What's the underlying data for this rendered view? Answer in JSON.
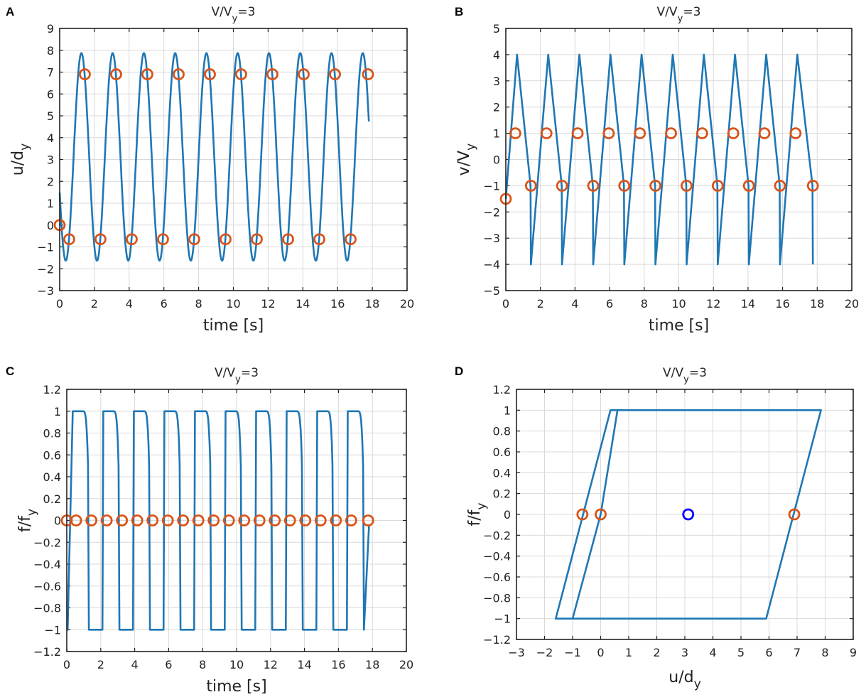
{
  "chart_data": [
    {
      "panel": "A",
      "type": "line",
      "title": "V/V",
      "title_sub": "y",
      "title_tail": "=3",
      "xlabel": "time [s]",
      "ylabel": "u/d",
      "ylabel_sub": "y",
      "xlim": [
        0,
        20
      ],
      "ylim": [
        -3,
        9
      ],
      "xticks": [
        0,
        2,
        4,
        6,
        8,
        10,
        12,
        14,
        16,
        18,
        20
      ],
      "yticks": [
        -3,
        -2,
        -1,
        0,
        1,
        2,
        3,
        4,
        5,
        6,
        7,
        8,
        9
      ],
      "curve": {
        "kind": "cosine_oscillation",
        "t_end": 17.8,
        "period": 1.8,
        "mean": 3.12,
        "amplitude": 4.75,
        "peaks": [
          1.25,
          3.05,
          4.85,
          6.65,
          8.45,
          10.25,
          12.05,
          13.85,
          15.65,
          17.45
        ],
        "troughs": [
          0.35,
          2.15,
          3.95,
          5.75,
          7.55,
          9.35,
          11.15,
          12.95,
          14.75,
          16.55
        ]
      },
      "markers": [
        {
          "x": 0.0,
          "y": 0.0
        },
        {
          "x": 0.55,
          "y": -0.65
        },
        {
          "x": 1.45,
          "y": 6.9
        },
        {
          "x": 2.35,
          "y": -0.65
        },
        {
          "x": 3.25,
          "y": 6.9
        },
        {
          "x": 4.15,
          "y": -0.65
        },
        {
          "x": 5.05,
          "y": 6.9
        },
        {
          "x": 5.95,
          "y": -0.65
        },
        {
          "x": 6.85,
          "y": 6.9
        },
        {
          "x": 7.75,
          "y": -0.65
        },
        {
          "x": 8.65,
          "y": 6.9
        },
        {
          "x": 9.55,
          "y": -0.65
        },
        {
          "x": 10.45,
          "y": 6.9
        },
        {
          "x": 11.35,
          "y": -0.65
        },
        {
          "x": 12.25,
          "y": 6.9
        },
        {
          "x": 13.15,
          "y": -0.65
        },
        {
          "x": 14.05,
          "y": 6.9
        },
        {
          "x": 14.95,
          "y": -0.65
        },
        {
          "x": 15.85,
          "y": 6.9
        },
        {
          "x": 16.75,
          "y": -0.65
        },
        {
          "x": 17.75,
          "y": 6.9
        }
      ]
    },
    {
      "panel": "B",
      "type": "line",
      "title": "V/V",
      "title_sub": "y",
      "title_tail": "=3",
      "xlabel": "time [s]",
      "ylabel": "v/V",
      "ylabel_sub": "y",
      "xlim": [
        0,
        20
      ],
      "ylim": [
        -5,
        5
      ],
      "xticks": [
        0,
        2,
        4,
        6,
        8,
        10,
        12,
        14,
        16,
        18,
        20
      ],
      "yticks": [
        -5,
        -4,
        -3,
        -2,
        -1,
        0,
        1,
        2,
        3,
        4,
        5
      ],
      "curve": {
        "kind": "sawtooth",
        "start": [
          0.0,
          -1.5
        ],
        "peaks": [
          0.65,
          2.45,
          4.25,
          6.05,
          7.85,
          9.65,
          11.45,
          13.25,
          15.05,
          16.85
        ],
        "troughs": [
          1.45,
          3.25,
          5.05,
          6.85,
          8.65,
          10.45,
          12.25,
          14.05,
          15.85,
          17.75
        ],
        "peak_value": 4,
        "trough_value": -4,
        "fall_end_value": -1
      },
      "markers": [
        {
          "x": 0.0,
          "y": -1.5
        },
        {
          "x": 0.55,
          "y": 1.0
        },
        {
          "x": 1.45,
          "y": -1.0
        },
        {
          "x": 2.35,
          "y": 1.0
        },
        {
          "x": 3.25,
          "y": -1.0
        },
        {
          "x": 4.15,
          "y": 1.0
        },
        {
          "x": 5.05,
          "y": -1.0
        },
        {
          "x": 5.95,
          "y": 1.0
        },
        {
          "x": 6.85,
          "y": -1.0
        },
        {
          "x": 7.75,
          "y": 1.0
        },
        {
          "x": 8.65,
          "y": -1.0
        },
        {
          "x": 9.55,
          "y": 1.0
        },
        {
          "x": 10.45,
          "y": -1.0
        },
        {
          "x": 11.35,
          "y": 1.0
        },
        {
          "x": 12.25,
          "y": -1.0
        },
        {
          "x": 13.15,
          "y": 1.0
        },
        {
          "x": 14.05,
          "y": -1.0
        },
        {
          "x": 14.95,
          "y": 1.0
        },
        {
          "x": 15.85,
          "y": -1.0
        },
        {
          "x": 16.75,
          "y": 1.0
        },
        {
          "x": 17.75,
          "y": -1.0
        }
      ]
    },
    {
      "panel": "C",
      "type": "line",
      "title": "V/V",
      "title_sub": "y",
      "title_tail": "=3",
      "xlabel": "time [s]",
      "ylabel": "f/f",
      "ylabel_sub": "y",
      "xlim": [
        0,
        20
      ],
      "ylim": [
        -1.2,
        1.2
      ],
      "xticks": [
        0,
        2,
        4,
        6,
        8,
        10,
        12,
        14,
        16,
        18,
        20
      ],
      "yticks": [
        -1.2,
        -1,
        -0.8,
        -0.6,
        -0.4,
        -0.2,
        0,
        0.2,
        0.4,
        0.6,
        0.8,
        1,
        1.2
      ],
      "curve": {
        "kind": "square_wave",
        "rises": [
          0.35,
          2.15,
          3.95,
          5.75,
          7.55,
          9.35,
          11.15,
          12.95,
          14.75,
          16.55
        ],
        "falls": [
          1.25,
          3.05,
          4.85,
          6.65,
          8.45,
          10.25,
          12.05,
          13.85,
          15.65,
          17.45
        ],
        "plateau_end": 1.05,
        "t_end": 17.8,
        "high": 1,
        "low": -1
      },
      "markers": [
        {
          "x": 0.0,
          "y": 0
        },
        {
          "x": 0.55,
          "y": 0
        },
        {
          "x": 1.45,
          "y": 0
        },
        {
          "x": 2.35,
          "y": 0
        },
        {
          "x": 3.25,
          "y": 0
        },
        {
          "x": 4.15,
          "y": 0
        },
        {
          "x": 5.05,
          "y": 0
        },
        {
          "x": 5.95,
          "y": 0
        },
        {
          "x": 6.85,
          "y": 0
        },
        {
          "x": 7.75,
          "y": 0
        },
        {
          "x": 8.65,
          "y": 0
        },
        {
          "x": 9.55,
          "y": 0
        },
        {
          "x": 10.45,
          "y": 0
        },
        {
          "x": 11.35,
          "y": 0
        },
        {
          "x": 12.25,
          "y": 0
        },
        {
          "x": 13.15,
          "y": 0
        },
        {
          "x": 14.05,
          "y": 0
        },
        {
          "x": 14.95,
          "y": 0
        },
        {
          "x": 15.85,
          "y": 0
        },
        {
          "x": 16.75,
          "y": 0
        },
        {
          "x": 17.75,
          "y": 0
        }
      ]
    },
    {
      "panel": "D",
      "type": "line",
      "title": "V/V",
      "title_sub": "y",
      "title_tail": "=3",
      "xlabel": "u/d",
      "xlabel_sub": "y",
      "ylabel": "f/f",
      "ylabel_sub": "y",
      "xlim": [
        -3,
        9
      ],
      "ylim": [
        -1.2,
        1.2
      ],
      "xticks": [
        -3,
        -2,
        -1,
        0,
        1,
        2,
        3,
        4,
        5,
        6,
        7,
        8,
        9
      ],
      "yticks": [
        -1.2,
        -1,
        -0.8,
        -0.6,
        -0.4,
        -0.2,
        0,
        0.2,
        0.4,
        0.6,
        0.8,
        1,
        1.2
      ],
      "curve": {
        "kind": "hysteresis_loop",
        "points": [
          [
            0.0,
            0.0
          ],
          [
            0.6,
            1.0
          ],
          [
            7.85,
            1.0
          ],
          [
            5.9,
            -1.0
          ],
          [
            -1.6,
            -1.0
          ],
          [
            0.35,
            1.0
          ],
          [
            7.85,
            1.0
          ],
          [
            5.9,
            -1.0
          ],
          [
            -1.0,
            -1.0
          ],
          [
            0.0,
            0.0
          ]
        ]
      },
      "markers": [
        {
          "x": -0.65,
          "y": 0
        },
        {
          "x": 0.0,
          "y": 0
        },
        {
          "x": 6.9,
          "y": 0
        }
      ],
      "extra_markers": [
        {
          "x": 3.12,
          "y": 0
        }
      ]
    }
  ],
  "colors": {
    "line": "#1f77b4",
    "marker": "#d95319",
    "extra_marker": "#0000ff"
  }
}
